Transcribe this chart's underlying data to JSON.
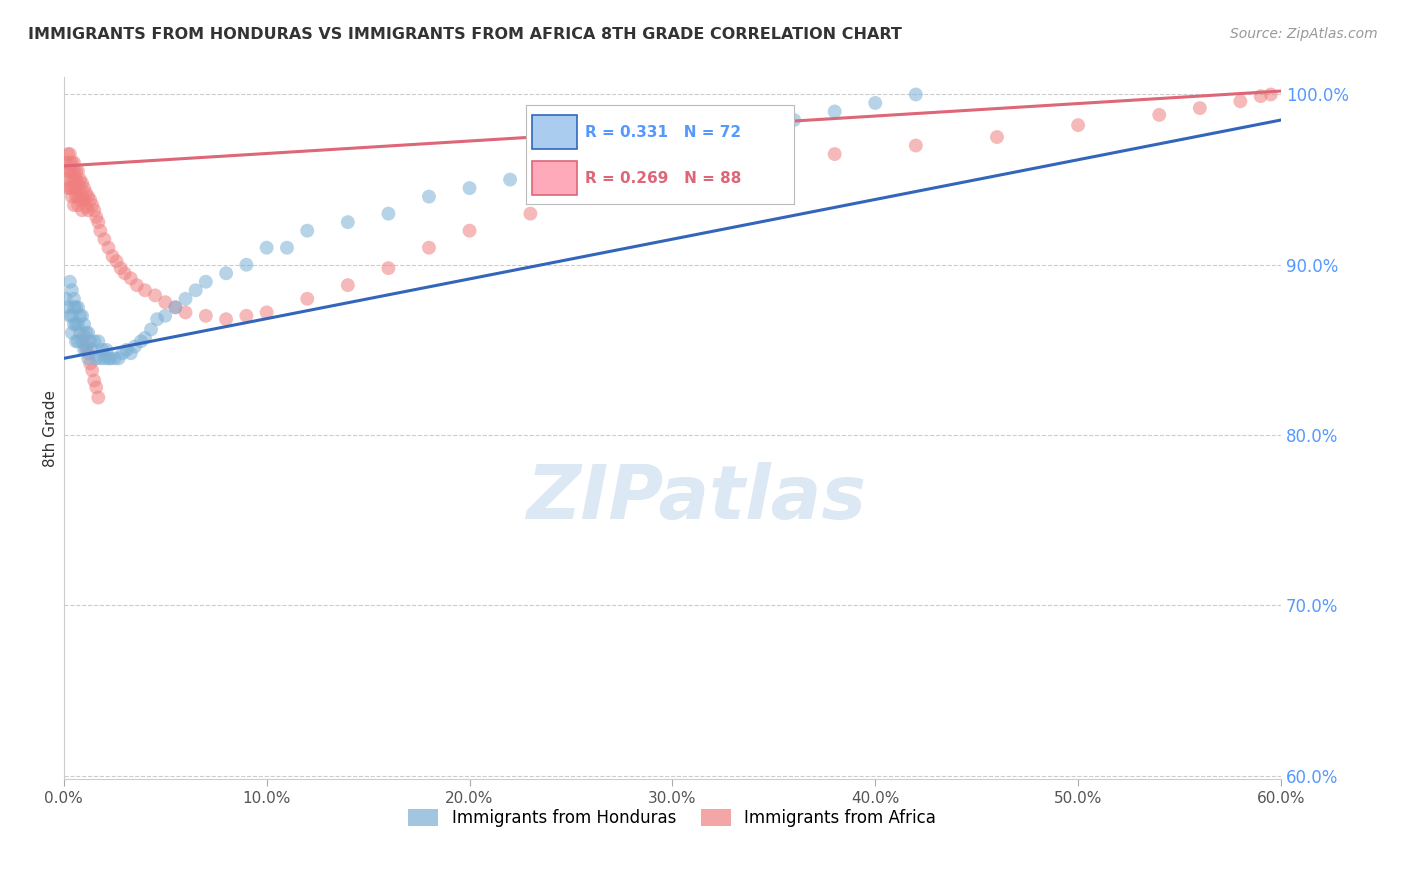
{
  "title": "IMMIGRANTS FROM HONDURAS VS IMMIGRANTS FROM AFRICA 8TH GRADE CORRELATION CHART",
  "source": "Source: ZipAtlas.com",
  "ylabel": "8th Grade",
  "xlim": [
    0.0,
    0.6
  ],
  "ylim": [
    0.598,
    1.01
  ],
  "yticks": [
    0.6,
    0.7,
    0.8,
    0.9,
    1.0
  ],
  "ytick_labels_right": [
    "60.0%",
    "70.0%",
    "80.0%",
    "90.0%",
    "100.0%"
  ],
  "xticks": [
    0.0,
    0.1,
    0.2,
    0.3,
    0.4,
    0.5,
    0.6
  ],
  "xtick_labels": [
    "0.0%",
    "10.0%",
    "20.0%",
    "30.0%",
    "40.0%",
    "50.0%",
    "60.0%"
  ],
  "right_ytick_color": "#5599ff",
  "color_honduras": "#7bafd4",
  "color_africa": "#f08080",
  "trendline_color_honduras": "#3366bb",
  "trendline_color_africa": "#dd6677",
  "background_color": "#ffffff",
  "watermark_color": "#dde8f5",
  "legend_R1": "R = 0.331",
  "legend_N1": "N = 72",
  "legend_R2": "R = 0.269",
  "legend_N2": "N = 88",
  "Honduras_x": [
    0.001,
    0.002,
    0.003,
    0.003,
    0.004,
    0.004,
    0.004,
    0.005,
    0.005,
    0.005,
    0.006,
    0.006,
    0.006,
    0.007,
    0.007,
    0.007,
    0.008,
    0.008,
    0.009,
    0.009,
    0.01,
    0.01,
    0.011,
    0.011,
    0.012,
    0.012,
    0.013,
    0.014,
    0.015,
    0.016,
    0.017,
    0.018,
    0.019,
    0.02,
    0.021,
    0.022,
    0.023,
    0.025,
    0.027,
    0.029,
    0.031,
    0.033,
    0.035,
    0.038,
    0.04,
    0.043,
    0.046,
    0.05,
    0.055,
    0.06,
    0.065,
    0.07,
    0.08,
    0.09,
    0.1,
    0.11,
    0.12,
    0.14,
    0.16,
    0.18,
    0.2,
    0.22,
    0.24,
    0.26,
    0.28,
    0.3,
    0.32,
    0.34,
    0.36,
    0.38,
    0.4,
    0.42
  ],
  "Honduras_y": [
    0.88,
    0.875,
    0.89,
    0.87,
    0.885,
    0.87,
    0.86,
    0.88,
    0.875,
    0.865,
    0.875,
    0.865,
    0.855,
    0.875,
    0.865,
    0.855,
    0.87,
    0.86,
    0.87,
    0.855,
    0.865,
    0.85,
    0.86,
    0.85,
    0.86,
    0.845,
    0.855,
    0.85,
    0.855,
    0.845,
    0.855,
    0.845,
    0.85,
    0.845,
    0.85,
    0.845,
    0.845,
    0.845,
    0.845,
    0.848,
    0.85,
    0.848,
    0.852,
    0.855,
    0.857,
    0.862,
    0.868,
    0.87,
    0.875,
    0.88,
    0.885,
    0.89,
    0.895,
    0.9,
    0.91,
    0.91,
    0.92,
    0.925,
    0.93,
    0.94,
    0.945,
    0.95,
    0.955,
    0.96,
    0.965,
    0.97,
    0.975,
    0.98,
    0.985,
    0.99,
    0.995,
    1.0
  ],
  "Africa_x": [
    0.001,
    0.001,
    0.002,
    0.002,
    0.002,
    0.003,
    0.003,
    0.003,
    0.003,
    0.004,
    0.004,
    0.004,
    0.004,
    0.004,
    0.005,
    0.005,
    0.005,
    0.005,
    0.005,
    0.006,
    0.006,
    0.006,
    0.006,
    0.007,
    0.007,
    0.007,
    0.007,
    0.008,
    0.008,
    0.008,
    0.009,
    0.009,
    0.009,
    0.01,
    0.01,
    0.011,
    0.011,
    0.012,
    0.012,
    0.013,
    0.014,
    0.015,
    0.016,
    0.017,
    0.018,
    0.02,
    0.022,
    0.024,
    0.026,
    0.028,
    0.03,
    0.033,
    0.036,
    0.04,
    0.045,
    0.05,
    0.055,
    0.06,
    0.07,
    0.08,
    0.09,
    0.1,
    0.12,
    0.14,
    0.16,
    0.18,
    0.2,
    0.23,
    0.26,
    0.3,
    0.34,
    0.38,
    0.42,
    0.46,
    0.5,
    0.54,
    0.56,
    0.58,
    0.59,
    0.595,
    0.01,
    0.011,
    0.012,
    0.013,
    0.014,
    0.015,
    0.016,
    0.017
  ],
  "Africa_y": [
    0.96,
    0.95,
    0.965,
    0.955,
    0.945,
    0.965,
    0.96,
    0.955,
    0.945,
    0.96,
    0.955,
    0.95,
    0.945,
    0.94,
    0.96,
    0.955,
    0.95,
    0.945,
    0.935,
    0.955,
    0.95,
    0.945,
    0.94,
    0.955,
    0.948,
    0.94,
    0.935,
    0.95,
    0.945,
    0.938,
    0.948,
    0.94,
    0.932,
    0.945,
    0.938,
    0.942,
    0.934,
    0.94,
    0.932,
    0.938,
    0.935,
    0.932,
    0.928,
    0.925,
    0.92,
    0.915,
    0.91,
    0.905,
    0.902,
    0.898,
    0.895,
    0.892,
    0.888,
    0.885,
    0.882,
    0.878,
    0.875,
    0.872,
    0.87,
    0.868,
    0.87,
    0.872,
    0.88,
    0.888,
    0.898,
    0.91,
    0.92,
    0.93,
    0.94,
    0.95,
    0.958,
    0.965,
    0.97,
    0.975,
    0.982,
    0.988,
    0.992,
    0.996,
    0.999,
    1.0,
    0.858,
    0.852,
    0.848,
    0.842,
    0.838,
    0.832,
    0.828,
    0.822
  ],
  "h_trend_x": [
    0.0,
    0.6
  ],
  "h_trend_y": [
    0.845,
    0.985
  ],
  "a_trend_x": [
    0.0,
    0.6
  ],
  "a_trend_y": [
    0.958,
    1.002
  ]
}
